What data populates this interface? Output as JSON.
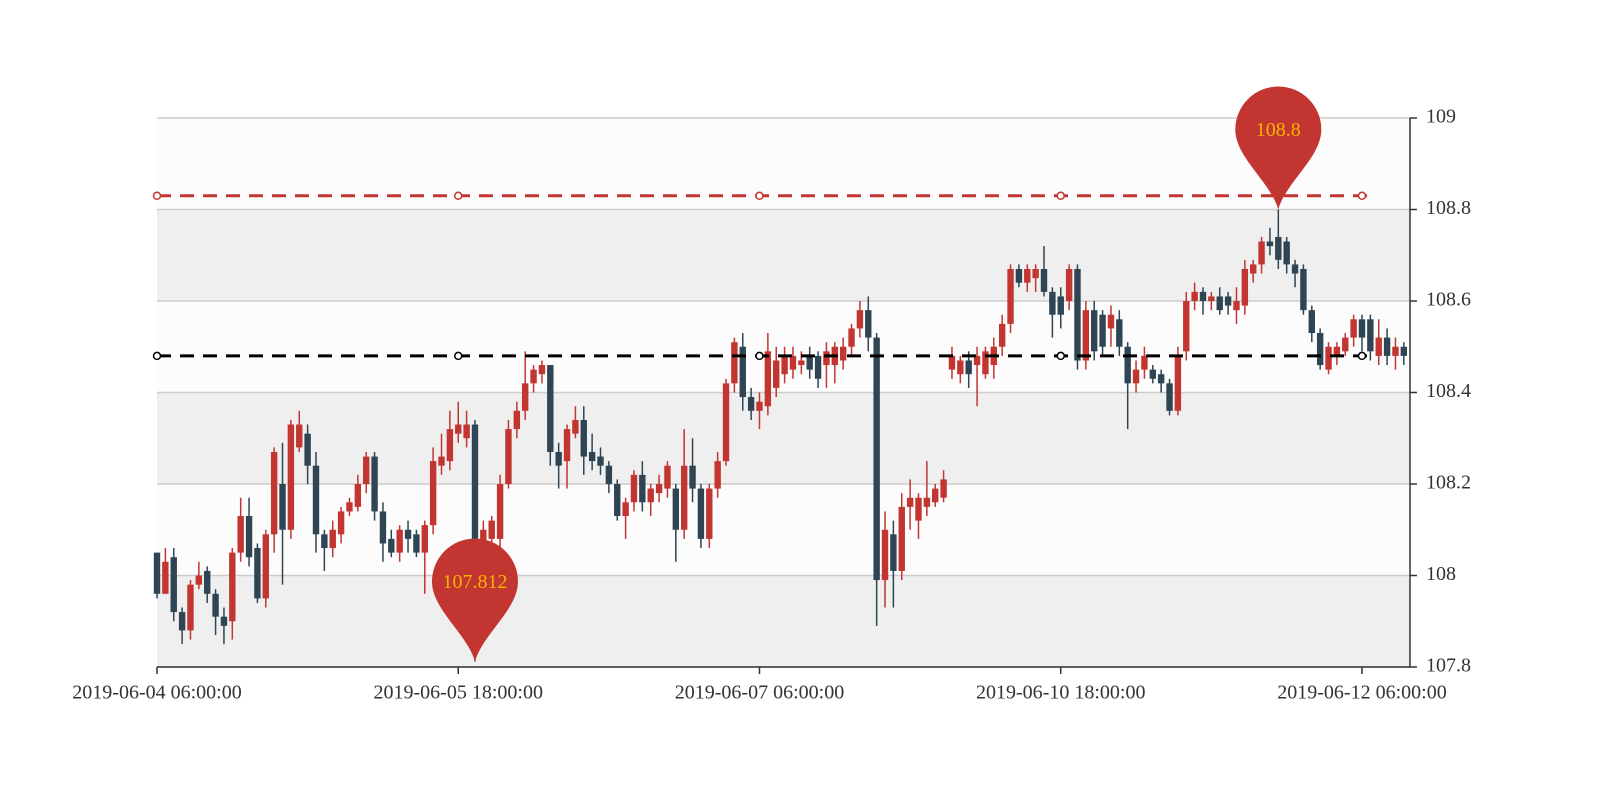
{
  "chart_data": {
    "type": "candlestick",
    "categories": [
      "2019-06-04 06:00:00",
      null,
      null,
      null,
      null,
      null,
      null,
      null,
      null,
      null,
      null,
      null,
      null,
      null,
      null,
      null,
      null,
      null,
      null,
      null,
      null,
      null,
      null,
      null,
      null,
      null,
      null,
      null,
      null,
      null,
      null,
      null,
      null,
      null,
      null,
      null,
      "2019-06-05 18:00:00",
      null,
      null,
      null,
      null,
      null,
      null,
      null,
      null,
      null,
      null,
      null,
      null,
      null,
      null,
      null,
      null,
      null,
      null,
      null,
      null,
      null,
      null,
      null,
      null,
      null,
      null,
      null,
      null,
      null,
      null,
      null,
      null,
      null,
      null,
      null,
      "2019-06-07 06:00:00",
      null,
      null,
      null,
      null,
      null,
      null,
      null,
      null,
      null,
      null,
      null,
      null,
      null,
      null,
      null,
      null,
      null,
      null,
      null,
      null,
      null,
      null,
      null,
      null,
      null,
      null,
      null,
      null,
      null,
      null,
      null,
      null,
      null,
      null,
      null,
      "2019-06-10 18:00:00",
      null,
      null,
      null,
      null,
      null,
      null,
      null,
      null,
      null,
      null,
      null,
      null,
      null,
      null,
      null,
      null,
      null,
      null,
      null,
      null,
      null,
      null,
      null,
      null,
      null,
      null,
      null,
      null,
      null,
      null,
      null,
      null,
      null,
      null,
      null,
      "2019-06-12 06:00:00",
      null,
      null,
      null,
      null,
      null
    ],
    "ohlc": [
      [
        108.05,
        107.96,
        107.95,
        108.05
      ],
      [
        107.96,
        108.03,
        107.96,
        108.06
      ],
      [
        108.04,
        107.92,
        107.9,
        108.06
      ],
      [
        107.92,
        107.88,
        107.85,
        107.93
      ],
      [
        107.88,
        107.98,
        107.86,
        107.99
      ],
      [
        107.98,
        108.0,
        107.97,
        108.03
      ],
      [
        108.01,
        107.96,
        107.94,
        108.02
      ],
      [
        107.96,
        107.91,
        107.87,
        107.97
      ],
      [
        107.91,
        107.89,
        107.85,
        107.93
      ],
      [
        107.9,
        108.05,
        107.86,
        108.06
      ],
      [
        108.05,
        108.13,
        108.03,
        108.17
      ],
      [
        108.13,
        108.04,
        108.02,
        108.17
      ],
      [
        108.06,
        107.95,
        107.94,
        108.07
      ],
      [
        107.95,
        108.09,
        107.93,
        108.1
      ],
      [
        108.09,
        108.27,
        108.05,
        108.28
      ],
      [
        108.2,
        108.1,
        107.98,
        108.29
      ],
      [
        108.1,
        108.33,
        108.08,
        108.34
      ],
      [
        108.28,
        108.33,
        108.27,
        108.36
      ],
      [
        108.31,
        108.24,
        108.2,
        108.33
      ],
      [
        108.24,
        108.09,
        108.05,
        108.27
      ],
      [
        108.09,
        108.06,
        108.01,
        108.1
      ],
      [
        108.06,
        108.1,
        108.04,
        108.12
      ],
      [
        108.09,
        108.14,
        108.07,
        108.15
      ],
      [
        108.14,
        108.16,
        108.13,
        108.17
      ],
      [
        108.15,
        108.2,
        108.14,
        108.22
      ],
      [
        108.2,
        108.26,
        108.18,
        108.27
      ],
      [
        108.26,
        108.14,
        108.12,
        108.27
      ],
      [
        108.14,
        108.07,
        108.03,
        108.16
      ],
      [
        108.08,
        108.05,
        108.04,
        108.1
      ],
      [
        108.05,
        108.1,
        108.03,
        108.11
      ],
      [
        108.1,
        108.08,
        108.05,
        108.12
      ],
      [
        108.09,
        108.05,
        108.04,
        108.1
      ],
      [
        108.05,
        108.11,
        107.96,
        108.12
      ],
      [
        108.11,
        108.25,
        108.09,
        108.28
      ],
      [
        108.24,
        108.26,
        108.22,
        108.31
      ],
      [
        108.25,
        108.32,
        108.23,
        108.36
      ],
      [
        108.31,
        108.33,
        108.29,
        108.38
      ],
      [
        108.3,
        108.33,
        108.28,
        108.36
      ],
      [
        108.33,
        108.08,
        107.812,
        108.34
      ],
      [
        108.05,
        108.1,
        108.03,
        108.12
      ],
      [
        108.08,
        108.12,
        108.05,
        108.13
      ],
      [
        108.08,
        108.2,
        108.06,
        108.22
      ],
      [
        108.2,
        108.32,
        108.19,
        108.34
      ],
      [
        108.32,
        108.36,
        108.3,
        108.38
      ],
      [
        108.36,
        108.42,
        108.34,
        108.49
      ],
      [
        108.42,
        108.45,
        108.4,
        108.46
      ],
      [
        108.44,
        108.46,
        108.42,
        108.47
      ],
      [
        108.46,
        108.27,
        108.24,
        108.46
      ],
      [
        108.27,
        108.24,
        108.19,
        108.29
      ],
      [
        108.25,
        108.32,
        108.19,
        108.33
      ],
      [
        108.31,
        108.34,
        108.3,
        108.37
      ],
      [
        108.34,
        108.26,
        108.22,
        108.37
      ],
      [
        108.27,
        108.25,
        108.23,
        108.31
      ],
      [
        108.26,
        108.24,
        108.22,
        108.28
      ],
      [
        108.24,
        108.2,
        108.18,
        108.25
      ],
      [
        108.2,
        108.13,
        108.12,
        108.21
      ],
      [
        108.13,
        108.16,
        108.08,
        108.17
      ],
      [
        108.16,
        108.22,
        108.14,
        108.23
      ],
      [
        108.22,
        108.16,
        108.14,
        108.25
      ],
      [
        108.16,
        108.19,
        108.13,
        108.2
      ],
      [
        108.18,
        108.2,
        108.16,
        108.22
      ],
      [
        108.19,
        108.24,
        108.17,
        108.25
      ],
      [
        108.19,
        108.1,
        108.03,
        108.2
      ],
      [
        108.1,
        108.24,
        108.08,
        108.32
      ],
      [
        108.24,
        108.19,
        108.16,
        108.3
      ],
      [
        108.19,
        108.08,
        108.06,
        108.2
      ],
      [
        108.08,
        108.19,
        108.06,
        108.2
      ],
      [
        108.19,
        108.25,
        108.17,
        108.27
      ],
      [
        108.25,
        108.42,
        108.24,
        108.43
      ],
      [
        108.42,
        108.51,
        108.4,
        108.52
      ],
      [
        108.5,
        108.39,
        108.36,
        108.53
      ],
      [
        108.39,
        108.36,
        108.34,
        108.41
      ],
      [
        108.36,
        108.38,
        108.32,
        108.4
      ],
      [
        108.37,
        108.49,
        108.35,
        108.53
      ],
      [
        108.41,
        108.47,
        108.39,
        108.5
      ],
      [
        108.44,
        108.48,
        108.42,
        108.5
      ],
      [
        108.45,
        108.48,
        108.43,
        108.5
      ],
      [
        108.46,
        108.47,
        108.44,
        108.49
      ],
      [
        108.48,
        108.45,
        108.43,
        108.5
      ],
      [
        108.48,
        108.43,
        108.41,
        108.49
      ],
      [
        108.46,
        108.49,
        108.41,
        108.51
      ],
      [
        108.46,
        108.5,
        108.42,
        108.51
      ],
      [
        108.47,
        108.5,
        108.45,
        108.52
      ],
      [
        108.5,
        108.54,
        108.48,
        108.55
      ],
      [
        108.54,
        108.58,
        108.52,
        108.6
      ],
      [
        108.58,
        108.52,
        108.49,
        108.61
      ],
      [
        108.52,
        107.99,
        107.89,
        108.53
      ],
      [
        107.99,
        108.1,
        107.93,
        108.14
      ],
      [
        108.09,
        108.01,
        107.93,
        108.12
      ],
      [
        108.01,
        108.15,
        107.99,
        108.18
      ],
      [
        108.15,
        108.17,
        108.1,
        108.21
      ],
      [
        108.12,
        108.17,
        108.08,
        108.18
      ],
      [
        108.15,
        108.17,
        108.13,
        108.25
      ],
      [
        108.16,
        108.19,
        108.15,
        108.2
      ],
      [
        108.17,
        108.21,
        108.16,
        108.23
      ],
      [
        108.45,
        108.48,
        108.43,
        108.5
      ],
      [
        108.44,
        108.47,
        108.42,
        108.48
      ],
      [
        108.47,
        108.44,
        108.41,
        108.49
      ],
      [
        108.46,
        108.48,
        108.37,
        108.5
      ],
      [
        108.44,
        108.49,
        108.43,
        108.5
      ],
      [
        108.46,
        108.5,
        108.43,
        108.52
      ],
      [
        108.5,
        108.55,
        108.48,
        108.57
      ],
      [
        108.55,
        108.67,
        108.53,
        108.68
      ],
      [
        108.67,
        108.64,
        108.63,
        108.68
      ],
      [
        108.64,
        108.67,
        108.62,
        108.68
      ],
      [
        108.65,
        108.67,
        108.62,
        108.68
      ],
      [
        108.67,
        108.62,
        108.61,
        108.72
      ],
      [
        108.62,
        108.57,
        108.52,
        108.63
      ],
      [
        108.61,
        108.57,
        108.54,
        108.63
      ],
      [
        108.6,
        108.67,
        108.58,
        108.68
      ],
      [
        108.67,
        108.47,
        108.45,
        108.68
      ],
      [
        108.47,
        108.58,
        108.45,
        108.6
      ],
      [
        108.58,
        108.49,
        108.47,
        108.6
      ],
      [
        108.57,
        108.5,
        108.48,
        108.58
      ],
      [
        108.54,
        108.57,
        108.5,
        108.59
      ],
      [
        108.56,
        108.5,
        108.48,
        108.58
      ],
      [
        108.5,
        108.42,
        108.32,
        108.51
      ],
      [
        108.42,
        108.45,
        108.4,
        108.47
      ],
      [
        108.45,
        108.48,
        108.43,
        108.5
      ],
      [
        108.45,
        108.43,
        108.42,
        108.46
      ],
      [
        108.44,
        108.42,
        108.4,
        108.45
      ],
      [
        108.42,
        108.36,
        108.35,
        108.43
      ],
      [
        108.36,
        108.48,
        108.35,
        108.5
      ],
      [
        108.49,
        108.6,
        108.47,
        108.62
      ],
      [
        108.6,
        108.62,
        108.58,
        108.64
      ],
      [
        108.62,
        108.6,
        108.57,
        108.63
      ],
      [
        108.6,
        108.61,
        108.58,
        108.62
      ],
      [
        108.61,
        108.58,
        108.57,
        108.63
      ],
      [
        108.61,
        108.59,
        108.57,
        108.62
      ],
      [
        108.58,
        108.6,
        108.55,
        108.63
      ],
      [
        108.59,
        108.67,
        108.57,
        108.69
      ],
      [
        108.66,
        108.68,
        108.64,
        108.69
      ],
      [
        108.68,
        108.73,
        108.66,
        108.74
      ],
      [
        108.73,
        108.72,
        108.7,
        108.76
      ],
      [
        108.74,
        108.69,
        108.67,
        108.8
      ],
      [
        108.73,
        108.68,
        108.66,
        108.74
      ],
      [
        108.68,
        108.66,
        108.63,
        108.69
      ],
      [
        108.67,
        108.58,
        108.57,
        108.68
      ],
      [
        108.58,
        108.53,
        108.51,
        108.59
      ],
      [
        108.53,
        108.46,
        108.45,
        108.54
      ],
      [
        108.45,
        108.5,
        108.44,
        108.51
      ],
      [
        108.48,
        108.5,
        108.46,
        108.51
      ],
      [
        108.49,
        108.52,
        108.48,
        108.53
      ],
      [
        108.52,
        108.56,
        108.5,
        108.57
      ],
      [
        108.56,
        108.52,
        108.49,
        108.57
      ],
      [
        108.56,
        108.49,
        108.47,
        108.57
      ],
      [
        108.48,
        108.52,
        108.46,
        108.56
      ],
      [
        108.52,
        108.48,
        108.46,
        108.54
      ],
      [
        108.48,
        108.5,
        108.45,
        108.52
      ],
      [
        108.5,
        108.48,
        108.46,
        108.51
      ]
    ],
    "up_color": "#c23531",
    "down_color": "#2f4554",
    "ylim": [
      107.8,
      109
    ],
    "yticks": [
      107.8,
      108,
      108.2,
      108.4,
      108.6,
      108.8,
      109
    ],
    "grid": true,
    "mark_lines": [
      {
        "value": 108.83,
        "color": "#c23531"
      },
      {
        "value": 108.48,
        "color": "#000000"
      }
    ],
    "mark_points": [
      {
        "value": 108.8,
        "color": "#c23531",
        "label_color": "#f5b400"
      },
      {
        "value": 107.812,
        "color": "#c23531",
        "label_color": "#f5b400"
      }
    ]
  }
}
